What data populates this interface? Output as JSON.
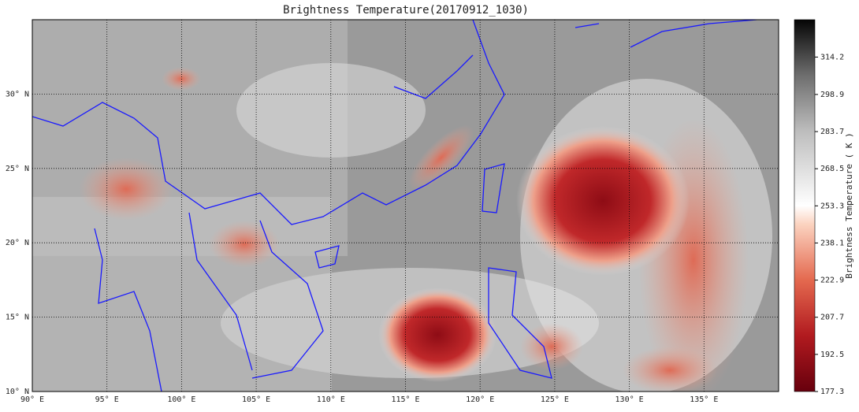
{
  "title": "Brightness Temperature(20170912_1030)",
  "map": {
    "lonlim": [
      90,
      140
    ],
    "latlim": [
      10,
      35
    ],
    "lonticks": [
      {
        "value": 90,
        "label": "90° E"
      },
      {
        "value": 95,
        "label": "95° E"
      },
      {
        "value": 100,
        "label": "100° E"
      },
      {
        "value": 105,
        "label": "105° E"
      },
      {
        "value": 110,
        "label": "110° E"
      },
      {
        "value": 115,
        "label": "115° E"
      },
      {
        "value": 120,
        "label": "120° E"
      },
      {
        "value": 125,
        "label": "125° E"
      },
      {
        "value": 130,
        "label": "130° E"
      },
      {
        "value": 135,
        "label": "135° E"
      }
    ],
    "latticks": [
      {
        "value": 10,
        "label": "10° N"
      },
      {
        "value": 15,
        "label": "15° N"
      },
      {
        "value": 20,
        "label": "20° N"
      },
      {
        "value": 25,
        "label": "25° N"
      },
      {
        "value": 30,
        "label": "30° N"
      }
    ]
  },
  "colorbar": {
    "label": "Brightness Temperature ( K )",
    "clim": [
      177.3,
      329.5
    ],
    "ticks": [
      177.3,
      192.5,
      207.7,
      222.9,
      238.1,
      253.3,
      268.5,
      283.7,
      298.9,
      314.2
    ]
  }
}
